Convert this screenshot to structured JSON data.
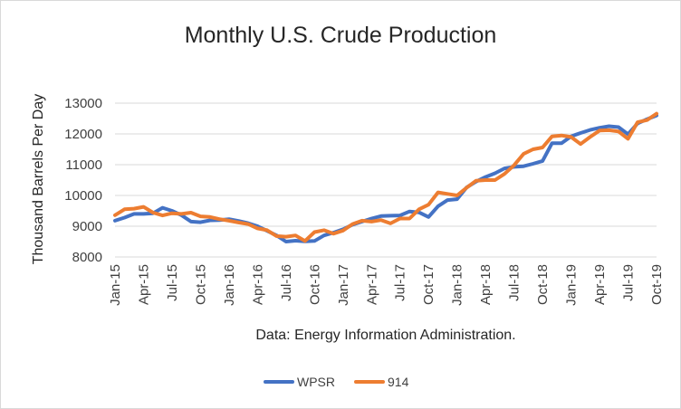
{
  "chart_data": {
    "type": "line",
    "title": "Monthly U.S. Crude Production",
    "xlabel": "Data: Energy Information Administration.",
    "ylabel": "Thousand Barrels Per Day",
    "ylim": [
      8000,
      13000
    ],
    "yticks": [
      8000,
      9000,
      10000,
      11000,
      12000,
      13000
    ],
    "grid": "horizontal",
    "legend_position": "bottom",
    "x": [
      "Jan-15",
      "Feb-15",
      "Mar-15",
      "Apr-15",
      "May-15",
      "Jun-15",
      "Jul-15",
      "Aug-15",
      "Sep-15",
      "Oct-15",
      "Nov-15",
      "Dec-15",
      "Jan-16",
      "Feb-16",
      "Mar-16",
      "Apr-16",
      "May-16",
      "Jun-16",
      "Jul-16",
      "Aug-16",
      "Sep-16",
      "Oct-16",
      "Nov-16",
      "Dec-16",
      "Jan-17",
      "Feb-17",
      "Mar-17",
      "Apr-17",
      "May-17",
      "Jun-17",
      "Jul-17",
      "Aug-17",
      "Sep-17",
      "Oct-17",
      "Nov-17",
      "Dec-17",
      "Jan-18",
      "Feb-18",
      "Mar-18",
      "Apr-18",
      "May-18",
      "Jun-18",
      "Jul-18",
      "Aug-18",
      "Sep-18",
      "Oct-18",
      "Nov-18",
      "Dec-18",
      "Jan-19",
      "Feb-19",
      "Mar-19",
      "Apr-19",
      "May-19",
      "Jun-19",
      "Jul-19",
      "Aug-19",
      "Sep-19",
      "Oct-19"
    ],
    "xtick_labels": [
      "Jan-15",
      "Apr-15",
      "Jul-15",
      "Oct-15",
      "Jan-16",
      "Apr-16",
      "Jul-16",
      "Oct-16",
      "Jan-17",
      "Apr-17",
      "Jul-17",
      "Oct-17",
      "Jan-18",
      "Apr-18",
      "Jul-18",
      "Oct-18",
      "Jan-19",
      "Apr-19",
      "Jul-19",
      "Oct-19"
    ],
    "series": [
      {
        "name": "WPSR",
        "color": "#4472c4",
        "values": [
          9180,
          9280,
          9400,
          9400,
          9420,
          9600,
          9500,
          9360,
          9150,
          9130,
          9190,
          9200,
          9230,
          9170,
          9100,
          9000,
          8850,
          8700,
          8500,
          8530,
          8510,
          8520,
          8700,
          8790,
          8900,
          9050,
          9150,
          9250,
          9330,
          9340,
          9350,
          9480,
          9450,
          9300,
          9650,
          9850,
          9880,
          10260,
          10450,
          10600,
          10720,
          10880,
          10930,
          10950,
          11030,
          11120,
          11700,
          11700,
          11920,
          12030,
          12130,
          12200,
          12250,
          12220,
          11990,
          12340,
          12480,
          12600
        ]
      },
      {
        "name": "914",
        "color": "#ed7d31",
        "values": [
          9360,
          9550,
          9570,
          9630,
          9440,
          9350,
          9420,
          9400,
          9440,
          9320,
          9300,
          9230,
          9180,
          9120,
          9070,
          8930,
          8870,
          8680,
          8660,
          8700,
          8520,
          8810,
          8870,
          8760,
          8860,
          9070,
          9180,
          9150,
          9200,
          9090,
          9250,
          9250,
          9550,
          9700,
          10100,
          10050,
          10000,
          10250,
          10480,
          10500,
          10500,
          10700,
          10980,
          11350,
          11500,
          11560,
          11920,
          11950,
          11900,
          11670,
          11900,
          12110,
          12120,
          12080,
          11840,
          12380,
          12450,
          12660
        ]
      }
    ]
  }
}
